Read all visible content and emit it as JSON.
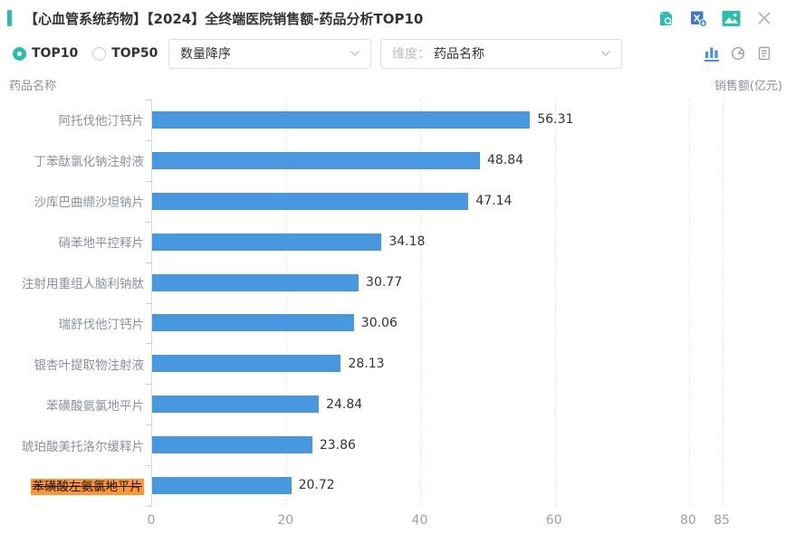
{
  "header": {
    "title": "【心血管系统药物】【2024】全终端医院销售额-药品分析TOP10",
    "icons": [
      {
        "name": "report-search-icon"
      },
      {
        "name": "excel-download-icon"
      },
      {
        "name": "image-export-icon"
      },
      {
        "name": "close-icon"
      }
    ]
  },
  "toolbar": {
    "top_options": [
      {
        "label": "TOP10",
        "selected": true
      },
      {
        "label": "TOP50",
        "selected": false
      }
    ],
    "sort_select": {
      "value": "数量降序"
    },
    "dimension_select": {
      "prefix": "维度：",
      "value": "药品名称"
    },
    "view_options": [
      {
        "name": "bar-chart-view",
        "active": true
      },
      {
        "name": "pie-chart-view",
        "active": false
      },
      {
        "name": "report-view",
        "active": false
      }
    ]
  },
  "chart_data": {
    "type": "bar",
    "orientation": "horizontal",
    "title": "",
    "xlabel": "销售额(亿元)",
    "ylabel": "药品名称",
    "xlim": [
      0,
      85
    ],
    "xticks": [
      0,
      20,
      40,
      60,
      80,
      85
    ],
    "grid": true,
    "categories": [
      "阿托伐他汀钙片",
      "丁苯酞氯化钠注射液",
      "沙库巴曲缬沙坦钠片",
      "硝苯地平控释片",
      "注射用重组人脑利钠肽",
      "瑞舒伐他汀钙片",
      "银杏叶提取物注射液",
      "苯磺酸氨氯地平片",
      "琥珀酸美托洛尔缓释片",
      "苯磺酸左氨氯地平片"
    ],
    "values": [
      56.31,
      48.84,
      47.14,
      34.18,
      30.77,
      30.06,
      28.13,
      24.84,
      23.86,
      20.72
    ],
    "highlighted_category": "苯磺酸左氨氯地平片",
    "bar_color": "#4798DF",
    "highlight_color": "#FF9632"
  },
  "colors": {
    "accent_teal": "#2BBEAD",
    "bar_blue": "#4798DF",
    "highlight_orange": "#FF9632",
    "active_view_blue": "#4A90E2"
  }
}
